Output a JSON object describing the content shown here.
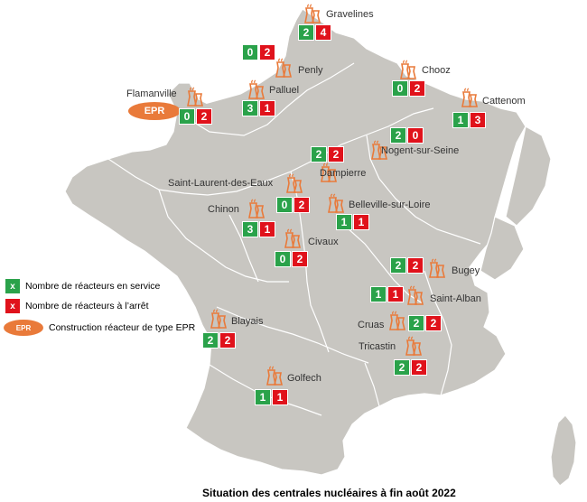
{
  "colors": {
    "land": "#c8c6c1",
    "border": "#ffffff",
    "green": "#2aa24a",
    "red": "#e0121b",
    "orange": "#e97a3a"
  },
  "plants": [
    {
      "id": "gravelines",
      "name": "Gravelines",
      "in_service": 2,
      "stopped": 4,
      "epr": false
    },
    {
      "id": "penly",
      "name": "Penly",
      "in_service": 0,
      "stopped": 2,
      "epr": false
    },
    {
      "id": "chooz",
      "name": "Chooz",
      "in_service": 0,
      "stopped": 2,
      "epr": false
    },
    {
      "id": "flamanville",
      "name": "Flamanville",
      "in_service": 0,
      "stopped": 2,
      "epr": true
    },
    {
      "id": "paluel",
      "name": "Palluel",
      "in_service": 3,
      "stopped": 1,
      "epr": false
    },
    {
      "id": "cattenom",
      "name": "Cattenom",
      "in_service": 1,
      "stopped": 3,
      "epr": false
    },
    {
      "id": "nogent",
      "name": "Nogent-sur-Seine",
      "in_service": 2,
      "stopped": 0,
      "epr": false
    },
    {
      "id": "dampierre",
      "name": "Dampierre",
      "in_service": 2,
      "stopped": 2,
      "epr": false
    },
    {
      "id": "saint-laurent",
      "name": "Saint-Laurent-des-Eaux",
      "in_service": 0,
      "stopped": 2,
      "epr": false
    },
    {
      "id": "belleville",
      "name": "Belleville-sur-Loire",
      "in_service": 1,
      "stopped": 1,
      "epr": false
    },
    {
      "id": "chinon",
      "name": "Chinon",
      "in_service": 3,
      "stopped": 1,
      "epr": false
    },
    {
      "id": "civaux",
      "name": "Civaux",
      "in_service": 0,
      "stopped": 2,
      "epr": false
    },
    {
      "id": "bugey",
      "name": "Bugey",
      "in_service": 2,
      "stopped": 2,
      "epr": false
    },
    {
      "id": "saint-alban",
      "name": "Saint-Alban",
      "in_service": 1,
      "stopped": 1,
      "epr": false
    },
    {
      "id": "blayais",
      "name": "Blayais",
      "in_service": 2,
      "stopped": 2,
      "epr": false
    },
    {
      "id": "cruas",
      "name": "Cruas",
      "in_service": 2,
      "stopped": 2,
      "epr": false
    },
    {
      "id": "tricastin",
      "name": "Tricastin",
      "in_service": 2,
      "stopped": 2,
      "epr": false
    },
    {
      "id": "golfech",
      "name": "Golfech",
      "in_service": 1,
      "stopped": 1,
      "epr": false
    }
  ],
  "epr_badge": "EPR",
  "legend": {
    "in_service_symbol": "x",
    "in_service_label": "Nombre de réacteurs en service",
    "stopped_symbol": "x",
    "stopped_label": "Nombre de réacteurs à l’arrêt",
    "epr_symbol": "EPR",
    "epr_label": "Construction réacteur de type EPR"
  },
  "caption": "Situation des centrales nucléaires à fin août 2022"
}
